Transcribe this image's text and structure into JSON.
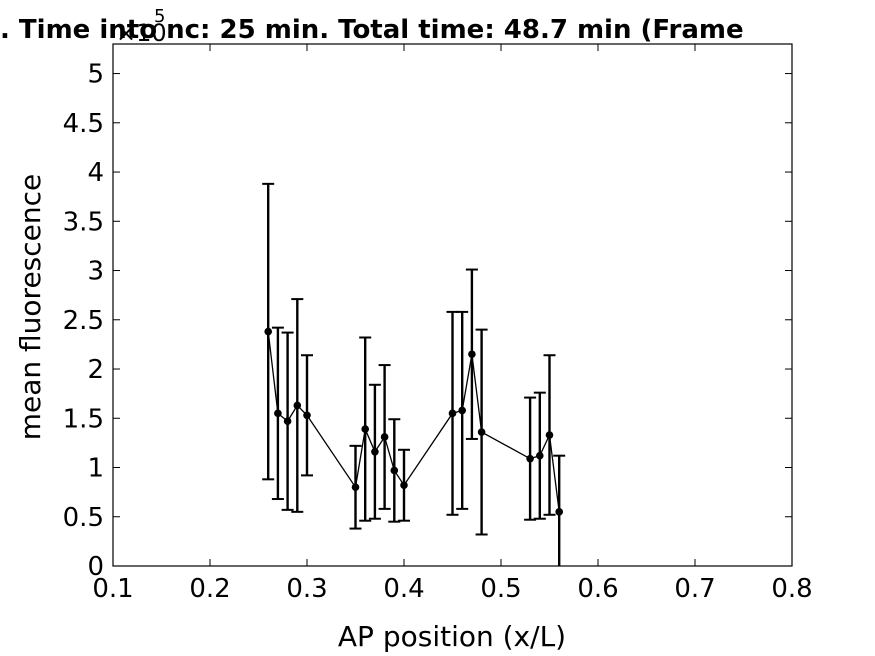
{
  "chart_data": {
    "type": "line",
    "title": ". Time into nc: 25 min. Total time: 48.7 min (Frame",
    "xlabel": "AP position (x/L)",
    "ylabel": "mean fluorescence",
    "y_exponent_base": "×10",
    "y_exponent_power": "5",
    "xlim": [
      0.1,
      0.8
    ],
    "ylim": [
      0,
      5.3
    ],
    "x_ticks": [
      "0.1",
      "0.2",
      "0.3",
      "0.4",
      "0.5",
      "0.6",
      "0.7",
      "0.8"
    ],
    "y_ticks": [
      "0",
      "0.5",
      "1",
      "1.5",
      "2",
      "2.5",
      "3",
      "3.5",
      "4",
      "4.5",
      "5"
    ],
    "grid": false,
    "series": [
      {
        "color": "#000000",
        "x": [
          0.26,
          0.27,
          0.28,
          0.29,
          0.3,
          0.35,
          0.36,
          0.37,
          0.38,
          0.39,
          0.4,
          0.45,
          0.46,
          0.47,
          0.48,
          0.53,
          0.54,
          0.55,
          0.56
        ],
        "y": [
          2.38,
          1.55,
          1.47,
          1.63,
          1.53,
          0.8,
          1.39,
          1.16,
          1.31,
          0.97,
          0.82,
          1.55,
          1.58,
          2.15,
          1.36,
          1.09,
          1.12,
          1.33,
          0.55
        ],
        "error": [
          1.5,
          0.87,
          0.9,
          1.08,
          0.61,
          0.42,
          0.93,
          0.68,
          0.73,
          0.52,
          0.36,
          1.03,
          1.0,
          0.86,
          1.04,
          0.62,
          0.64,
          0.81,
          0.57
        ]
      }
    ]
  }
}
